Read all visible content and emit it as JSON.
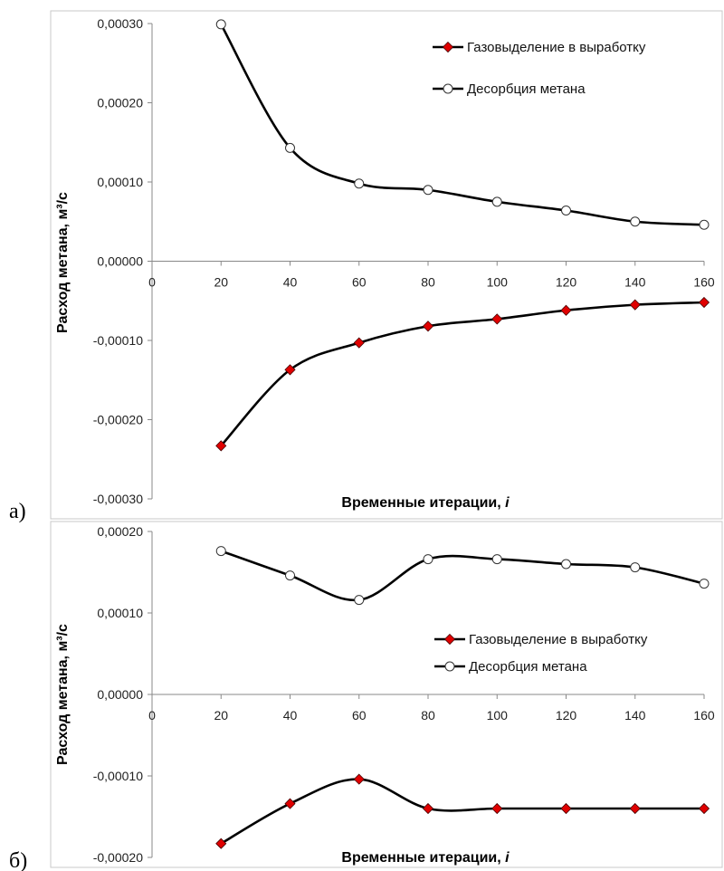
{
  "chart_data": [
    {
      "type": "line",
      "panel_label": "а)",
      "xlabel": "Временные итерации, ",
      "xlabel_italic": "i",
      "ylabel": "Расход  метана, м³/с",
      "xlim": [
        0,
        160
      ],
      "ylim": [
        -0.0003,
        0.0003
      ],
      "x_ticks": [
        "0",
        "20",
        "40",
        "60",
        "80",
        "100",
        "120",
        "140",
        "160"
      ],
      "y_ticks": [
        "0,00030",
        "0,00020",
        "0,00010",
        "0,00000",
        "-0,00010",
        "-0,00020",
        "-0,00030"
      ],
      "y_tick_values": [
        0.0003,
        0.0002,
        0.0001,
        0,
        -0.0001,
        -0.0002,
        -0.0003
      ],
      "legend_position": "top-right",
      "grid": false,
      "series": [
        {
          "name": "Газовыделение в выработку",
          "marker": "diamond",
          "color": "#e00000",
          "x": [
            20,
            40,
            60,
            80,
            100,
            120,
            140,
            160
          ],
          "y": [
            -0.000233,
            -0.000137,
            -0.000103,
            -8.2e-05,
            -7.3e-05,
            -6.2e-05,
            -5.5e-05,
            -5.2e-05
          ]
        },
        {
          "name": "Десорбция метана",
          "marker": "circle",
          "color": "#ffffff",
          "x": [
            20,
            40,
            60,
            80,
            100,
            120,
            140,
            160
          ],
          "y": [
            0.000299,
            0.000143,
            9.8e-05,
            9e-05,
            7.5e-05,
            6.4e-05,
            5e-05,
            4.6e-05
          ]
        }
      ]
    },
    {
      "type": "line",
      "panel_label": "б)",
      "xlabel": "Временные итерации, ",
      "xlabel_italic": "i",
      "ylabel": "Расход  метана, м³/с",
      "xlim": [
        0,
        160
      ],
      "ylim": [
        -0.0002,
        0.0002
      ],
      "x_ticks": [
        "0",
        "20",
        "40",
        "60",
        "80",
        "100",
        "120",
        "140",
        "160"
      ],
      "y_ticks": [
        "0,00020",
        "0,00010",
        "0,00000",
        "-0,00010",
        "-0,00020"
      ],
      "y_tick_values": [
        0.0002,
        0.0001,
        0,
        -0.0001,
        -0.0002
      ],
      "legend_position": "center-right",
      "grid": false,
      "series": [
        {
          "name": "Газовыделение в выработку",
          "marker": "diamond",
          "color": "#e00000",
          "x": [
            20,
            40,
            60,
            80,
            100,
            120,
            140,
            160
          ],
          "y": [
            -0.000183,
            -0.000134,
            -0.000104,
            -0.00014,
            -0.00014,
            -0.00014,
            -0.00014,
            -0.00014
          ]
        },
        {
          "name": "Десорбция метана",
          "marker": "circle",
          "color": "#ffffff",
          "x": [
            20,
            40,
            60,
            80,
            100,
            120,
            140,
            160
          ],
          "y": [
            0.000176,
            0.000146,
            0.000116,
            0.000166,
            0.000166,
            0.00016,
            0.000156,
            0.000136
          ]
        }
      ]
    }
  ]
}
